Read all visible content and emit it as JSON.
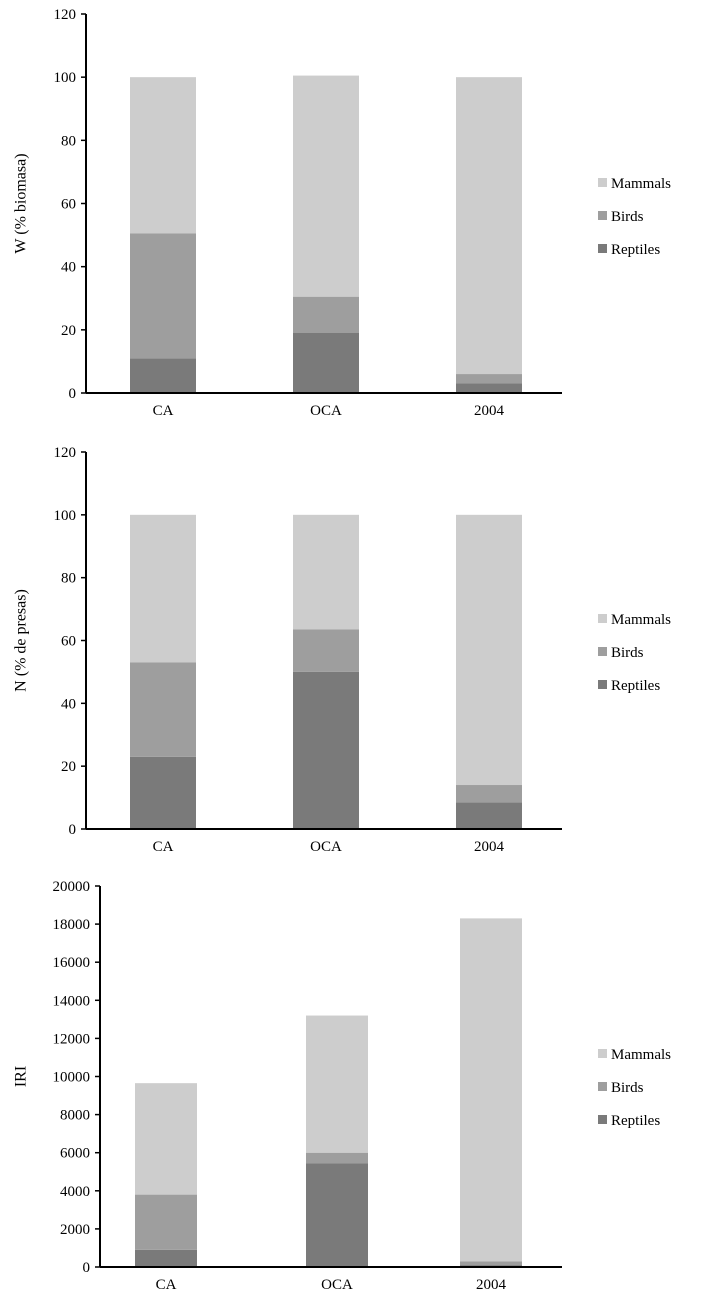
{
  "chart_data": [
    {
      "type": "bar",
      "stacked": true,
      "ylabel": "W (% biomasa)",
      "categories": [
        "CA",
        "OCA",
        "2004"
      ],
      "ylim": [
        0,
        120
      ],
      "yticks": [
        "0",
        "20",
        "40",
        "60",
        "80",
        "100",
        "120"
      ],
      "series": [
        {
          "name": "Reptiles",
          "color": "#7a7a7a",
          "values": [
            11,
            19,
            3
          ]
        },
        {
          "name": "Birds",
          "color": "#9e9e9e",
          "values": [
            39.5,
            11.5,
            3
          ]
        },
        {
          "name": "Mammals",
          "color": "#cdcdcd",
          "values": [
            49.5,
            70,
            94
          ]
        }
      ],
      "legend": "right"
    },
    {
      "type": "bar",
      "stacked": true,
      "ylabel": "N (% de presas)",
      "categories": [
        "CA",
        "OCA",
        "2004"
      ],
      "ylim": [
        0,
        120
      ],
      "yticks": [
        "0",
        "20",
        "40",
        "60",
        "80",
        "100",
        "120"
      ],
      "series": [
        {
          "name": "Reptiles",
          "color": "#7a7a7a",
          "values": [
            23,
            50,
            8.5
          ]
        },
        {
          "name": "Birds",
          "color": "#9e9e9e",
          "values": [
            30,
            13.5,
            5.5
          ]
        },
        {
          "name": "Mammals",
          "color": "#cdcdcd",
          "values": [
            47,
            36.5,
            86
          ]
        }
      ],
      "legend": "right"
    },
    {
      "type": "bar",
      "stacked": true,
      "ylabel": "IRI",
      "categories": [
        "CA",
        "OCA",
        "2004"
      ],
      "ylim": [
        0,
        20000
      ],
      "yticks": [
        "0",
        "2000",
        "4000",
        "6000",
        "8000",
        "10000",
        "12000",
        "14000",
        "16000",
        "18000",
        "20000"
      ],
      "series": [
        {
          "name": "Reptiles",
          "color": "#7a7a7a",
          "values": [
            900,
            5450,
            100
          ]
        },
        {
          "name": "Birds",
          "color": "#9e9e9e",
          "values": [
            2900,
            550,
            200
          ]
        },
        {
          "name": "Mammals",
          "color": "#cdcdcd",
          "values": [
            5850,
            7200,
            18000
          ]
        }
      ],
      "legend": "right"
    }
  ]
}
